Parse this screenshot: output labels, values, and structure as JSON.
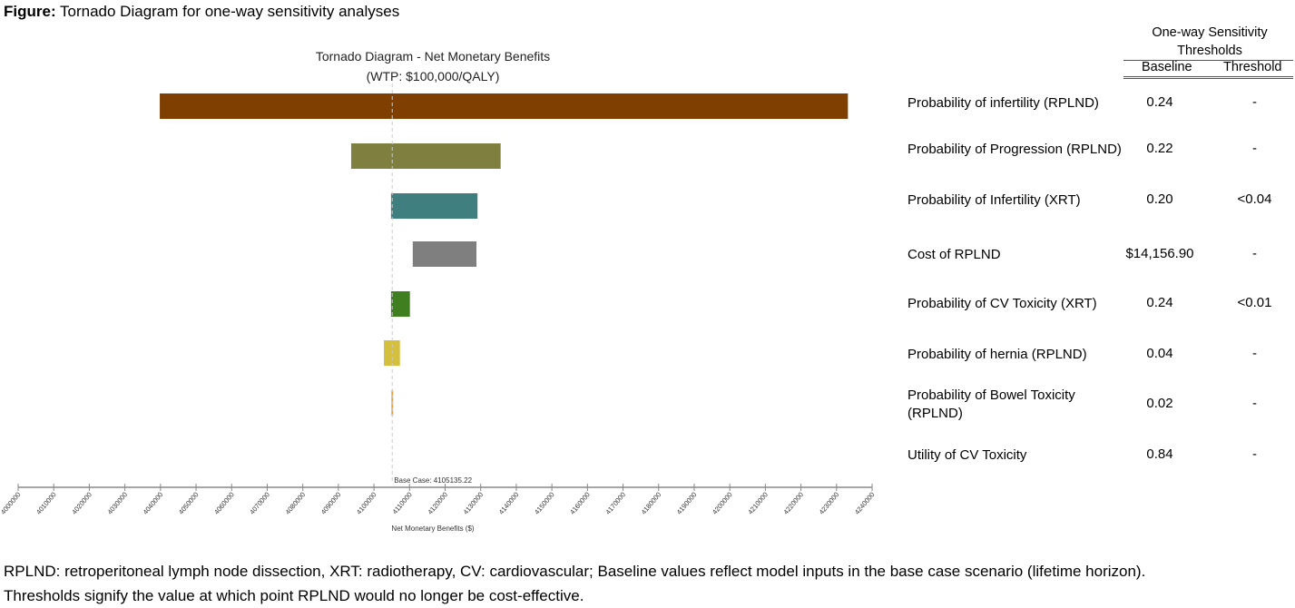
{
  "figure_caption": {
    "prefix": "Figure:",
    "text": " Tornado Diagram for one-way sensitivity analyses"
  },
  "chart_data": {
    "type": "bar",
    "orientation": "horizontal-tornado",
    "title": "Tornado Diagram - Net Monetary Benefits",
    "subtitle": "(WTP: $100,000/QALY)",
    "xlabel": "Net Monetary Benefits ($)",
    "xlim": [
      4000000,
      4240000
    ],
    "xticks": [
      4000000,
      4010000,
      4020000,
      4030000,
      4040000,
      4050000,
      4060000,
      4070000,
      4080000,
      4090000,
      4100000,
      4110000,
      4120000,
      4130000,
      4140000,
      4150000,
      4160000,
      4170000,
      4180000,
      4190000,
      4200000,
      4210000,
      4220000,
      4230000,
      4240000
    ],
    "base_case": 4105135.22,
    "base_case_label": "Base Case: 4105135.22",
    "grid": false,
    "bars": [
      {
        "category": "Probability of infertility (RPLND)",
        "low": 4039800,
        "high": 4233200,
        "color": "#7F3F00"
      },
      {
        "category": "Probability of Progression (RPLND)",
        "low": 4093600,
        "high": 4135600,
        "color": "#7F7F3F"
      },
      {
        "category": "Probability of Infertility (XRT)",
        "low": 4104800,
        "high": 4129100,
        "color": "#3F7F7F"
      },
      {
        "category": "Cost of RPLND",
        "low": 4110900,
        "high": 4128800,
        "color": "#7F7F7F"
      },
      {
        "category": "Probability of CV Toxicity (XRT)",
        "low": 4104800,
        "high": 4110100,
        "color": "#3F7F1F"
      },
      {
        "category": "Probability of hernia (RPLND)",
        "low": 4102800,
        "high": 4107300,
        "color": "#D4BF3F"
      },
      {
        "category": "Probability of Bowel Toxicity (RPLND)",
        "low": 4104900,
        "high": 4105400,
        "color": "#E0A040"
      },
      {
        "category": "Utility of CV Toxicity",
        "low": 4105135,
        "high": 4105135,
        "color": "#7F7F7F"
      }
    ]
  },
  "table": {
    "header": "One-way Sensitivity Thresholds",
    "col_baseline": "Baseline",
    "col_threshold": "Threshold",
    "rows": [
      {
        "label": "Probability of infertility (RPLND)",
        "baseline": "0.24",
        "threshold": "-"
      },
      {
        "label": "Probability of Progression (RPLND)",
        "baseline": "0.22",
        "threshold": "-"
      },
      {
        "label": "Probability of Infertility (XRT)",
        "baseline": "0.20",
        "threshold": "<0.04"
      },
      {
        "label": "Cost of RPLND",
        "baseline": "$14,156.90",
        "threshold": "-"
      },
      {
        "label": "Probability of CV Toxicity (XRT)",
        "baseline": "0.24",
        "threshold": "<0.01"
      },
      {
        "label": "Probability of hernia (RPLND)",
        "baseline": "0.04",
        "threshold": "-"
      },
      {
        "label": "Probability of Bowel Toxicity (RPLND)",
        "baseline": "0.02",
        "threshold": "-"
      },
      {
        "label": "Utility of CV Toxicity",
        "baseline": "0.84",
        "threshold": "-"
      }
    ]
  },
  "footnote": "RPLND: retroperitoneal lymph node dissection, XRT: radiotherapy, CV: cardiovascular; Baseline values reflect model inputs in the base case scenario (lifetime horizon). Thresholds signify the value at which point RPLND would no longer be cost-effective."
}
